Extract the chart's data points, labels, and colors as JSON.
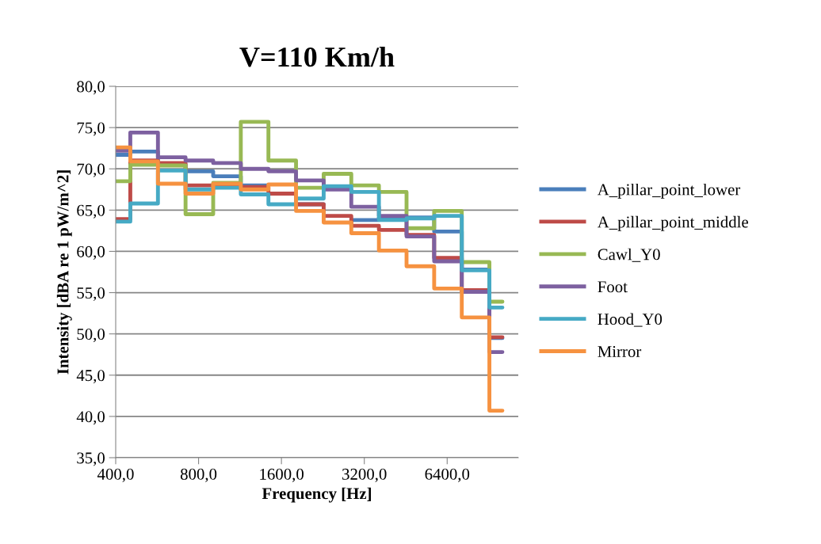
{
  "chart_data": {
    "type": "step",
    "title": "V=110 Km/h",
    "xlabel": "Frequency [Hz]",
    "ylabel": "Intensity [dBA re 1 pW/m^2]",
    "x": [
      400,
      504,
      635,
      800,
      1008,
      1270,
      1600,
      2016,
      2540,
      3200,
      4032,
      5080,
      6400,
      8063,
      10159
    ],
    "log": "x",
    "xlim": [
      400,
      11600
    ],
    "xticks": [
      {
        "value": 400,
        "label": "400,0"
      },
      {
        "value": 800,
        "label": "800,0"
      },
      {
        "value": 1600,
        "label": "1600,0"
      },
      {
        "value": 3200,
        "label": "3200,0"
      },
      {
        "value": 6400,
        "label": "6400,0"
      }
    ],
    "ylim": [
      35,
      80
    ],
    "yticks": [
      {
        "value": 35,
        "label": "35,0"
      },
      {
        "value": 40,
        "label": "40,0"
      },
      {
        "value": 45,
        "label": "45,0"
      },
      {
        "value": 50,
        "label": "50,0"
      },
      {
        "value": 55,
        "label": "55,0"
      },
      {
        "value": 60,
        "label": "60,0"
      },
      {
        "value": 65,
        "label": "65,0"
      },
      {
        "value": 70,
        "label": "70,0"
      },
      {
        "value": 75,
        "label": "75,0"
      },
      {
        "value": 80,
        "label": "80,0"
      }
    ],
    "grid": "y",
    "legend": "right",
    "marker": "none",
    "line_style": "solid",
    "series": [
      {
        "name": "A_pillar_point_lower",
        "color": "#4a7ebb",
        "values": [
          71.7,
          72.1,
          70.5,
          69.7,
          69.1,
          68.0,
          null,
          65.7,
          null,
          63.8,
          64.1,
          64.1,
          62.4,
          57.8,
          49.5
        ]
      },
      {
        "name": "A_pillar_point_middle",
        "color": "#be4b48",
        "values": [
          63.9,
          71.0,
          70.7,
          68.0,
          68.0,
          67.8,
          67.0,
          65.7,
          64.3,
          63.1,
          62.6,
          62.0,
          59.2,
          55.3,
          49.6
        ]
      },
      {
        "name": "Cawl_Y0",
        "color": "#98b954",
        "values": [
          68.5,
          70.5,
          70.4,
          64.5,
          68.3,
          75.7,
          71.0,
          67.7,
          69.4,
          68.0,
          67.2,
          62.8,
          64.9,
          58.7,
          53.9
        ]
      },
      {
        "name": "Foot",
        "color": "#7d60a0",
        "values": [
          72.2,
          74.4,
          71.4,
          71.0,
          70.7,
          70.0,
          69.7,
          68.6,
          67.5,
          65.4,
          64.3,
          61.8,
          58.8,
          55.1,
          47.8
        ]
      },
      {
        "name": "Hood_Y0",
        "color": "#46aac5",
        "values": [
          63.6,
          65.8,
          69.8,
          67.5,
          67.7,
          66.9,
          65.7,
          66.4,
          67.9,
          67.2,
          63.8,
          64.0,
          64.3,
          57.7,
          53.2
        ]
      },
      {
        "name": "Mirror",
        "color": "#f69240",
        "values": [
          72.6,
          70.9,
          68.2,
          67.0,
          68.2,
          67.5,
          68.1,
          64.9,
          63.5,
          62.2,
          60.1,
          58.2,
          55.5,
          52.0,
          40.7
        ]
      }
    ]
  }
}
